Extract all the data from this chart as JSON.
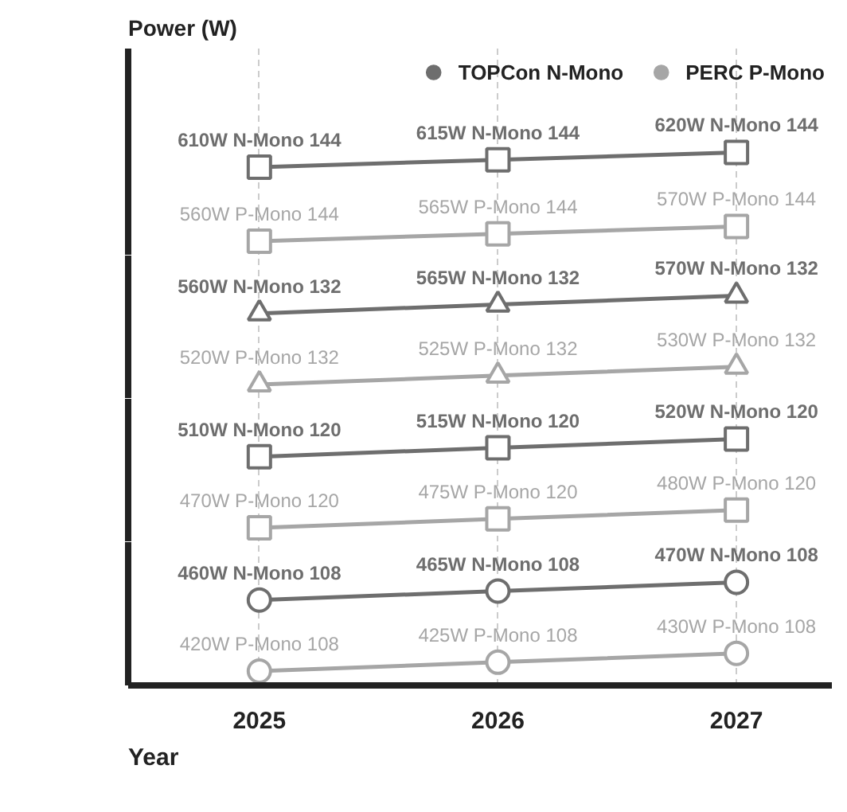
{
  "chart_data": [
    {
      "type": "line",
      "ylabel": "Power (W)",
      "x": [
        2025,
        2026,
        2027
      ],
      "xticks": [
        2025,
        2026,
        2027
      ],
      "tick_labels": false,
      "grid": "x",
      "legend": "top right",
      "marker": "square",
      "series": [
        {
          "name": "TOPCon N-Mono",
          "color": "#6e6e6e",
          "values": [
            610,
            615,
            620
          ],
          "value_labels": [
            "610W N-Mono 144",
            "615W N-Mono 144",
            "620W N-Mono 144"
          ]
        },
        {
          "name": "PERC P-Mono",
          "color": "#a6a6a6",
          "values": [
            560,
            565,
            570
          ],
          "value_labels": [
            "560W P-Mono 144",
            "565W P-Mono 144",
            "570W P-Mono 144"
          ]
        }
      ]
    },
    {
      "type": "line",
      "x": [
        2025,
        2026,
        2027
      ],
      "xticks": [
        2025,
        2026,
        2027
      ],
      "tick_labels": false,
      "grid": "x",
      "marker": "triangle",
      "series": [
        {
          "color": "#6e6e6e",
          "values": [
            560,
            565,
            570
          ],
          "value_labels": [
            "560W N-Mono 132",
            "565W N-Mono 132",
            "570W N-Mono 132"
          ]
        },
        {
          "color": "#a6a6a6",
          "values": [
            520,
            525,
            530
          ],
          "value_labels": [
            "520W P-Mono 132",
            "525W P-Mono 132",
            "530W P-Mono 132"
          ]
        }
      ]
    },
    {
      "type": "line",
      "x": [
        2025,
        2026,
        2027
      ],
      "xticks": [
        2025,
        2026,
        2027
      ],
      "tick_labels": false,
      "grid": "x",
      "marker": "square",
      "series": [
        {
          "color": "#6e6e6e",
          "values": [
            510,
            515,
            520
          ],
          "value_labels": [
            "510W N-Mono 120",
            "515W N-Mono 120",
            "520W N-Mono 120"
          ]
        },
        {
          "color": "#a6a6a6",
          "values": [
            470,
            475,
            480
          ],
          "value_labels": [
            "470W P-Mono 120",
            "475W P-Mono 120",
            "480W P-Mono 120"
          ]
        }
      ]
    },
    {
      "type": "line",
      "xlabel": "Year",
      "x": [
        2025,
        2026,
        2027
      ],
      "xlim": [
        2024.45,
        2027.4
      ],
      "xticks": [
        2025,
        2026,
        2027
      ],
      "tick_labels": "x",
      "grid": "x",
      "marker": "circle",
      "series": [
        {
          "color": "#6e6e6e",
          "values": [
            460,
            465,
            470
          ],
          "value_labels": [
            "460W N-Mono 108",
            "465W N-Mono 108",
            "470W N-Mono 108"
          ]
        },
        {
          "color": "#a6a6a6",
          "values": [
            420,
            425,
            430
          ],
          "value_labels": [
            "420W P-Mono 108",
            "425W P-Mono 108",
            "430W P-Mono 108"
          ]
        }
      ]
    }
  ]
}
